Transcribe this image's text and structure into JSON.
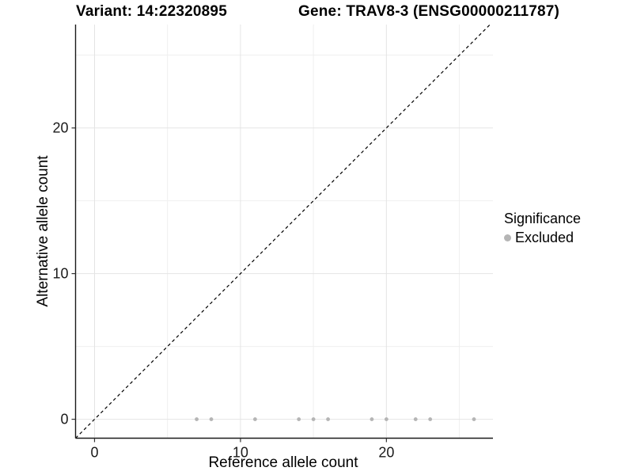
{
  "titles": {
    "variant": "Variant: 14:22320895",
    "gene": "Gene: TRAV8-3 (ENSG00000211787)"
  },
  "axes": {
    "x_label": "Reference allele count",
    "y_label": "Alternative allele count"
  },
  "legend": {
    "title": "Significance",
    "items": [
      {
        "label": "Excluded",
        "color": "#b5b5b5"
      }
    ]
  },
  "colors": {
    "background": "#ffffff",
    "point": "#b5b5b5",
    "major_grid": "#e4e4e4",
    "minor_grid": "#efefef",
    "axis_line": "#1a1a1a",
    "tick_mark": "#333333",
    "tick_label": "#1a1a1a",
    "reference_line": "#000000",
    "text": "#000000"
  },
  "chart_data": {
    "type": "scatter",
    "title": "Variant: 14:22320895 — Gene: TRAV8-3 (ENSG00000211787)",
    "xlabel": "Reference allele count",
    "ylabel": "Alternative allele count",
    "xlim": [
      -1.3,
      27.3
    ],
    "ylim": [
      -1.3,
      27.1
    ],
    "x_ticks": [
      0,
      10,
      20
    ],
    "y_ticks": [
      0,
      10,
      20
    ],
    "x_minor_gridlines": [
      5,
      15,
      25
    ],
    "y_minor_gridlines": [
      5,
      15,
      25
    ],
    "grid": true,
    "legend_position": "right",
    "series": [
      {
        "name": "Excluded",
        "color": "#b5b5b5",
        "points": [
          [
            7,
            0
          ],
          [
            8,
            0
          ],
          [
            11,
            0
          ],
          [
            14,
            0
          ],
          [
            15,
            0
          ],
          [
            16,
            0
          ],
          [
            19,
            0
          ],
          [
            20,
            0
          ],
          [
            22,
            0
          ],
          [
            23,
            0
          ],
          [
            26,
            0
          ]
        ]
      }
    ],
    "reference_line": {
      "type": "identity-diagonal",
      "style": "dashed",
      "color": "#000000"
    }
  }
}
